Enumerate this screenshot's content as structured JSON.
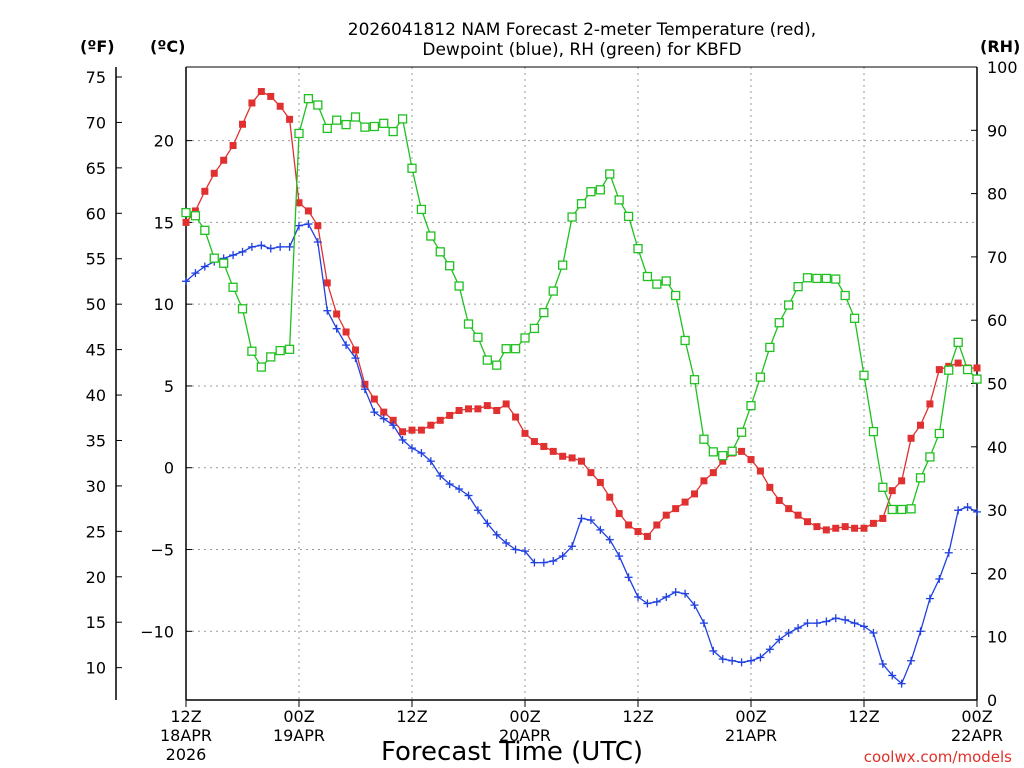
{
  "chart_data": {
    "type": "line",
    "title_line1": "2026041812 NAM Forecast 2-meter Temperature (red),",
    "title_line2": "Dewpoint (blue), RH (green) for KBFD",
    "xlabel": "Forecast Time (UTC)",
    "credit": "coolwx.com/models",
    "unit_f": "(ºF)",
    "unit_c": "(ºC)",
    "unit_rh": "(RH)",
    "x_hours_range": [
      0,
      84
    ],
    "y_c_range": [
      -14.2,
      24.5
    ],
    "y_rh_range": [
      0,
      100
    ],
    "x_ticks": [
      {
        "hour": 0,
        "lines": [
          "12Z",
          "18APR",
          "2026"
        ]
      },
      {
        "hour": 12,
        "lines": [
          "00Z",
          "19APR"
        ]
      },
      {
        "hour": 24,
        "lines": [
          "12Z"
        ]
      },
      {
        "hour": 36,
        "lines": [
          "00Z",
          "20APR"
        ]
      },
      {
        "hour": 48,
        "lines": [
          "12Z"
        ]
      },
      {
        "hour": 60,
        "lines": [
          "00Z",
          "21APR"
        ]
      },
      {
        "hour": 72,
        "lines": [
          "12Z"
        ]
      },
      {
        "hour": 84,
        "lines": [
          "00Z",
          "22APR"
        ]
      }
    ],
    "y_ticks_c": [
      -10,
      -5,
      0,
      5,
      10,
      15,
      20
    ],
    "y_ticks_f": [
      10,
      15,
      20,
      25,
      30,
      35,
      40,
      45,
      50,
      55,
      60,
      65,
      70,
      75
    ],
    "y_ticks_rh": [
      0,
      10,
      20,
      30,
      40,
      50,
      60,
      70,
      80,
      90,
      100
    ],
    "grid": true,
    "colors": {
      "temperature": "#e03030",
      "dewpoint": "#2040e0",
      "rh": "#20c020",
      "grid": "#9a9a9a"
    },
    "series": [
      {
        "key": "temperature",
        "marker": "filled-square",
        "x": [
          0,
          1,
          2,
          3,
          4,
          5,
          6,
          7,
          8,
          9,
          10,
          11,
          12,
          13,
          14,
          15,
          16,
          17,
          18,
          19,
          20,
          21,
          22,
          23,
          24,
          25,
          26,
          27,
          28,
          29,
          30,
          31,
          32,
          33,
          34,
          35,
          36,
          37,
          38,
          39,
          40,
          41,
          42,
          43,
          44,
          45,
          46,
          47,
          48,
          49,
          50,
          51,
          52,
          53,
          54,
          55,
          56,
          57,
          58,
          59,
          60,
          61,
          62,
          63,
          64,
          65,
          66,
          67,
          68,
          69,
          70,
          71,
          72,
          73,
          74,
          75,
          76,
          77,
          78,
          79,
          80,
          81,
          82,
          83,
          84
        ],
        "values": [
          15.0,
          15.7,
          16.9,
          18.0,
          18.8,
          19.7,
          21.0,
          22.3,
          23.0,
          22.7,
          22.1,
          21.3,
          16.2,
          15.7,
          14.8,
          11.3,
          9.4,
          8.3,
          7.2,
          5.1,
          4.2,
          3.4,
          2.9,
          2.2,
          2.3,
          2.3,
          2.6,
          2.9,
          3.2,
          3.5,
          3.6,
          3.6,
          3.8,
          3.5,
          3.9,
          3.1,
          2.1,
          1.6,
          1.3,
          1.0,
          0.7,
          0.6,
          0.4,
          -0.3,
          -0.9,
          -1.8,
          -2.8,
          -3.5,
          -3.9,
          -4.2,
          -3.5,
          -2.9,
          -2.5,
          -2.1,
          -1.6,
          -0.8,
          -0.3,
          0.4,
          0.9,
          1.0,
          0.5,
          -0.2,
          -1.2,
          -2.0,
          -2.5,
          -2.9,
          -3.3,
          -3.6,
          -3.8,
          -3.7,
          -3.6,
          -3.7,
          -3.7,
          -3.4,
          -3.1,
          -1.4,
          -0.8,
          1.8,
          2.6,
          3.9,
          6.0,
          6.2,
          6.4,
          6.1,
          6.1
        ]
      },
      {
        "key": "dewpoint",
        "marker": "plus",
        "x": [
          0,
          1,
          2,
          3,
          4,
          5,
          6,
          7,
          8,
          9,
          10,
          11,
          12,
          13,
          14,
          15,
          16,
          17,
          18,
          19,
          20,
          21,
          22,
          23,
          24,
          25,
          26,
          27,
          28,
          29,
          30,
          31,
          32,
          33,
          34,
          35,
          36,
          37,
          38,
          39,
          40,
          41,
          42,
          43,
          44,
          45,
          46,
          47,
          48,
          49,
          50,
          51,
          52,
          53,
          54,
          55,
          56,
          57,
          58,
          59,
          60,
          61,
          62,
          63,
          64,
          65,
          66,
          67,
          68,
          69,
          70,
          71,
          72,
          73,
          74,
          75,
          76,
          77,
          78,
          79,
          80,
          81,
          82,
          83,
          84
        ],
        "values": [
          11.4,
          11.9,
          12.3,
          12.6,
          12.8,
          13.0,
          13.2,
          13.5,
          13.6,
          13.4,
          13.5,
          13.5,
          14.8,
          14.9,
          13.8,
          9.6,
          8.5,
          7.5,
          6.7,
          4.8,
          3.4,
          3.0,
          2.6,
          1.7,
          1.2,
          0.9,
          0.4,
          -0.5,
          -1.0,
          -1.3,
          -1.7,
          -2.6,
          -3.4,
          -4.1,
          -4.6,
          -5.0,
          -5.1,
          -5.8,
          -5.8,
          -5.7,
          -5.4,
          -4.8,
          -3.1,
          -3.2,
          -3.8,
          -4.4,
          -5.4,
          -6.7,
          -7.9,
          -8.3,
          -8.2,
          -7.9,
          -7.6,
          -7.7,
          -8.4,
          -9.5,
          -11.2,
          -11.7,
          -11.8,
          -11.9,
          -11.8,
          -11.6,
          -11.1,
          -10.5,
          -10.1,
          -9.8,
          -9.5,
          -9.5,
          -9.4,
          -9.2,
          -9.3,
          -9.5,
          -9.7,
          -10.1,
          -12.0,
          -12.7,
          -13.2,
          -11.8,
          -10.0,
          -8.0,
          -6.8,
          -5.2,
          -2.6,
          -2.4,
          -2.7
        ]
      },
      {
        "key": "rh",
        "marker": "open-square",
        "axis": "rh",
        "x": [
          0,
          1,
          2,
          3,
          4,
          5,
          6,
          7,
          8,
          9,
          10,
          11,
          12,
          13,
          14,
          15,
          16,
          17,
          18,
          19,
          20,
          21,
          22,
          23,
          24,
          25,
          26,
          27,
          28,
          29,
          30,
          31,
          32,
          33,
          34,
          35,
          36,
          37,
          38,
          39,
          40,
          41,
          42,
          43,
          44,
          45,
          46,
          47,
          48,
          49,
          50,
          51,
          52,
          53,
          54,
          55,
          56,
          57,
          58,
          59,
          60,
          61,
          62,
          63,
          64,
          65,
          66,
          67,
          68,
          69,
          70,
          71,
          72,
          73,
          74,
          75,
          76,
          77,
          78,
          79,
          80,
          81,
          82,
          83,
          84
        ],
        "values": [
          77.0,
          76.5,
          74.2,
          69.8,
          69.0,
          65.2,
          61.8,
          55.1,
          52.6,
          54.2,
          55.2,
          55.4,
          89.5,
          95.0,
          94.0,
          90.3,
          91.6,
          90.9,
          92.1,
          90.5,
          90.6,
          91.1,
          89.8,
          91.8,
          84.0,
          77.5,
          73.3,
          70.8,
          68.6,
          65.4,
          59.4,
          57.3,
          53.7,
          52.9,
          55.5,
          55.5,
          57.2,
          58.7,
          61.2,
          64.6,
          68.7,
          76.3,
          78.4,
          80.3,
          80.6,
          83.1,
          79.0,
          76.4,
          71.3,
          66.9,
          65.7,
          66.2,
          63.9,
          56.8,
          50.6,
          41.2,
          39.2,
          38.6,
          39.3,
          42.3,
          46.5,
          51.0,
          55.7,
          59.6,
          62.4,
          65.3,
          66.7,
          66.6,
          66.6,
          66.5,
          63.9,
          60.3,
          51.3,
          42.4,
          33.6,
          30.1,
          30.1,
          30.2,
          35.1,
          38.4,
          42.1,
          52.1,
          56.5,
          52.2,
          50.7
        ]
      }
    ]
  }
}
